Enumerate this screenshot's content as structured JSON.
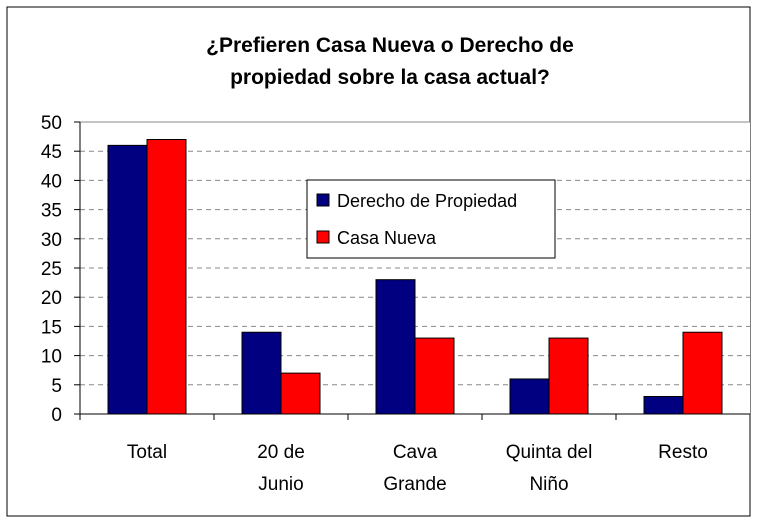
{
  "chart_data": {
    "type": "bar",
    "title": "¿Prefieren Casa Nueva o Derecho de propiedad sobre la casa actual?",
    "categories": [
      "Total",
      "20 de Junio",
      "Cava Grande",
      "Quinta del Niño",
      "Resto"
    ],
    "series": [
      {
        "name": "Derecho de Propiedad",
        "color": "#000080",
        "values": [
          46,
          14,
          23,
          6,
          3
        ]
      },
      {
        "name": "Casa Nueva",
        "color": "#ff0000",
        "values": [
          47,
          7,
          13,
          13,
          14
        ]
      }
    ],
    "ylim": [
      0,
      50
    ],
    "yticks": [
      0,
      5,
      10,
      15,
      20,
      25,
      30,
      35,
      40,
      45,
      50
    ],
    "grid": true,
    "legend": "center"
  }
}
